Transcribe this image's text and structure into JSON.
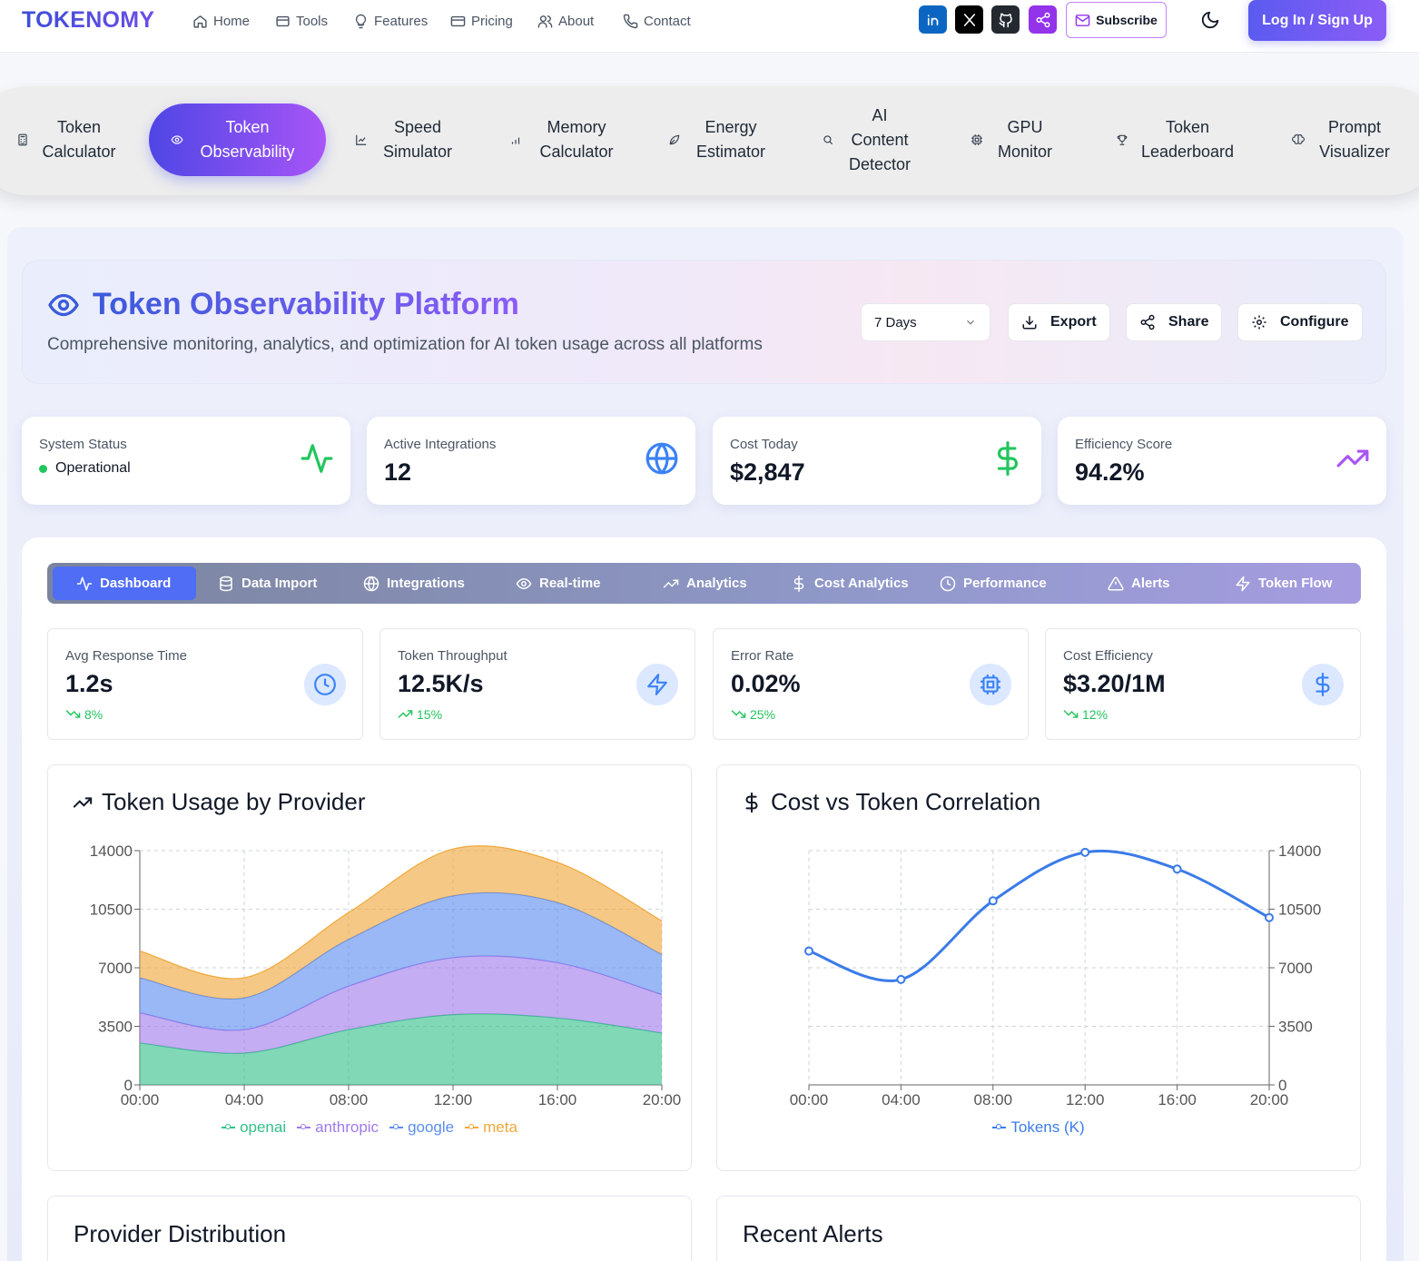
{
  "brand": {
    "logo": "TOKENOMY"
  },
  "nav": {
    "links": [
      {
        "label": "Home",
        "icon": "home-icon"
      },
      {
        "label": "Tools",
        "icon": "tools-icon"
      },
      {
        "label": "Features",
        "icon": "lightbulb-icon"
      },
      {
        "label": "Pricing",
        "icon": "credit-card-icon"
      },
      {
        "label": "About",
        "icon": "users-icon"
      },
      {
        "label": "Contact",
        "icon": "phone-icon"
      }
    ],
    "social": [
      {
        "name": "linkedin-icon",
        "color": "#0a66c2"
      },
      {
        "name": "x-icon",
        "color": "#000000"
      },
      {
        "name": "github-icon",
        "color": "#24292f"
      },
      {
        "name": "share-icon",
        "color": "#9333ea"
      }
    ],
    "subscribe_label": "Subscribe",
    "login_label": "Log In / Sign Up"
  },
  "tools": [
    {
      "label": "Token Calculator",
      "icon": "calculator-icon"
    },
    {
      "label": "Token Observability",
      "icon": "eye-icon",
      "active": true
    },
    {
      "label": "Speed Simulator",
      "icon": "line-chart-icon"
    },
    {
      "label": "Memory Calculator",
      "icon": "bar-chart-icon"
    },
    {
      "label": "Energy Estimator",
      "icon": "leaf-icon"
    },
    {
      "label": "AI Content Detector",
      "icon": "search-icon"
    },
    {
      "label": "GPU Monitor",
      "icon": "cpu-icon"
    },
    {
      "label": "Token Leaderboard",
      "icon": "trophy-icon"
    },
    {
      "label": "Prompt Visualizer",
      "icon": "brain-icon"
    }
  ],
  "hero": {
    "title": "Token Observability Platform",
    "subtitle": "Comprehensive monitoring, analytics, and optimization for AI token usage across all platforms",
    "period": "7 Days",
    "export_label": "Export",
    "share_label": "Share",
    "configure_label": "Configure"
  },
  "stats": [
    {
      "label": "System Status",
      "value": "Operational",
      "icon": "activity-icon"
    },
    {
      "label": "Active Integrations",
      "value": "12",
      "icon": "globe-icon"
    },
    {
      "label": "Cost Today",
      "value": "$2,847",
      "icon": "dollar-icon"
    },
    {
      "label": "Efficiency Score",
      "value": "94.2%",
      "icon": "trending-up-icon"
    }
  ],
  "dash_tabs": [
    {
      "label": "Dashboard",
      "icon": "activity-icon",
      "active": true
    },
    {
      "label": "Data Import",
      "icon": "database-icon"
    },
    {
      "label": "Integrations",
      "icon": "globe-icon"
    },
    {
      "label": "Real-time",
      "icon": "eye-icon"
    },
    {
      "label": "Analytics",
      "icon": "trending-up-icon"
    },
    {
      "label": "Cost Analytics",
      "icon": "dollar-icon"
    },
    {
      "label": "Performance",
      "icon": "clock-icon"
    },
    {
      "label": "Alerts",
      "icon": "alert-triangle-icon"
    },
    {
      "label": "Token Flow",
      "icon": "zap-icon"
    }
  ],
  "metrics": [
    {
      "label": "Avg Response Time",
      "value": "1.2s",
      "delta": "8%",
      "direction": "down",
      "icon": "clock-icon"
    },
    {
      "label": "Token Throughput",
      "value": "12.5K/s",
      "delta": "15%",
      "direction": "up",
      "icon": "zap-icon"
    },
    {
      "label": "Error Rate",
      "value": "0.02%",
      "delta": "25%",
      "direction": "down",
      "icon": "cpu-icon"
    },
    {
      "label": "Cost Efficiency",
      "value": "$3.20/1M",
      "delta": "12%",
      "direction": "down",
      "icon": "dollar-icon"
    }
  ],
  "charts": {
    "usage_title": "Token Usage by Provider",
    "corr_title": "Cost vs Token Correlation",
    "provider_title": "Provider Distribution",
    "alerts_title": "Recent Alerts"
  },
  "chart_data": [
    {
      "type": "area",
      "title": "Token Usage by Provider",
      "stacked": true,
      "x": [
        "00:00",
        "04:00",
        "08:00",
        "12:00",
        "16:00",
        "20:00"
      ],
      "ylim": [
        0,
        14000
      ],
      "yticks": [
        0,
        3500,
        7000,
        10500,
        14000
      ],
      "grid": true,
      "legend": "bottom",
      "series": [
        {
          "name": "openai",
          "color": "#34c08a",
          "values": [
            2500,
            1900,
            3300,
            4200,
            4000,
            3100
          ]
        },
        {
          "name": "anthropic",
          "color": "#9f7aea",
          "values": [
            1800,
            1400,
            2600,
            3400,
            3300,
            2300
          ]
        },
        {
          "name": "google",
          "color": "#5b8def",
          "values": [
            2100,
            1900,
            2800,
            3700,
            3600,
            2400
          ]
        },
        {
          "name": "meta",
          "color": "#f0a73a",
          "values": [
            1600,
            1200,
            1600,
            2800,
            2400,
            2000
          ]
        }
      ]
    },
    {
      "type": "line",
      "title": "Cost vs Token Correlation",
      "x": [
        "00:00",
        "04:00",
        "08:00",
        "12:00",
        "16:00",
        "20:00"
      ],
      "ylim": [
        0,
        14000
      ],
      "yticks": [
        0,
        3500,
        7000,
        10500,
        14000
      ],
      "y_axis_side": "right",
      "grid": true,
      "legend": "bottom",
      "series": [
        {
          "name": "Tokens (K)",
          "color": "#3b7be8",
          "values": [
            8000,
            6300,
            11000,
            13900,
            12900,
            10000
          ]
        }
      ]
    }
  ]
}
